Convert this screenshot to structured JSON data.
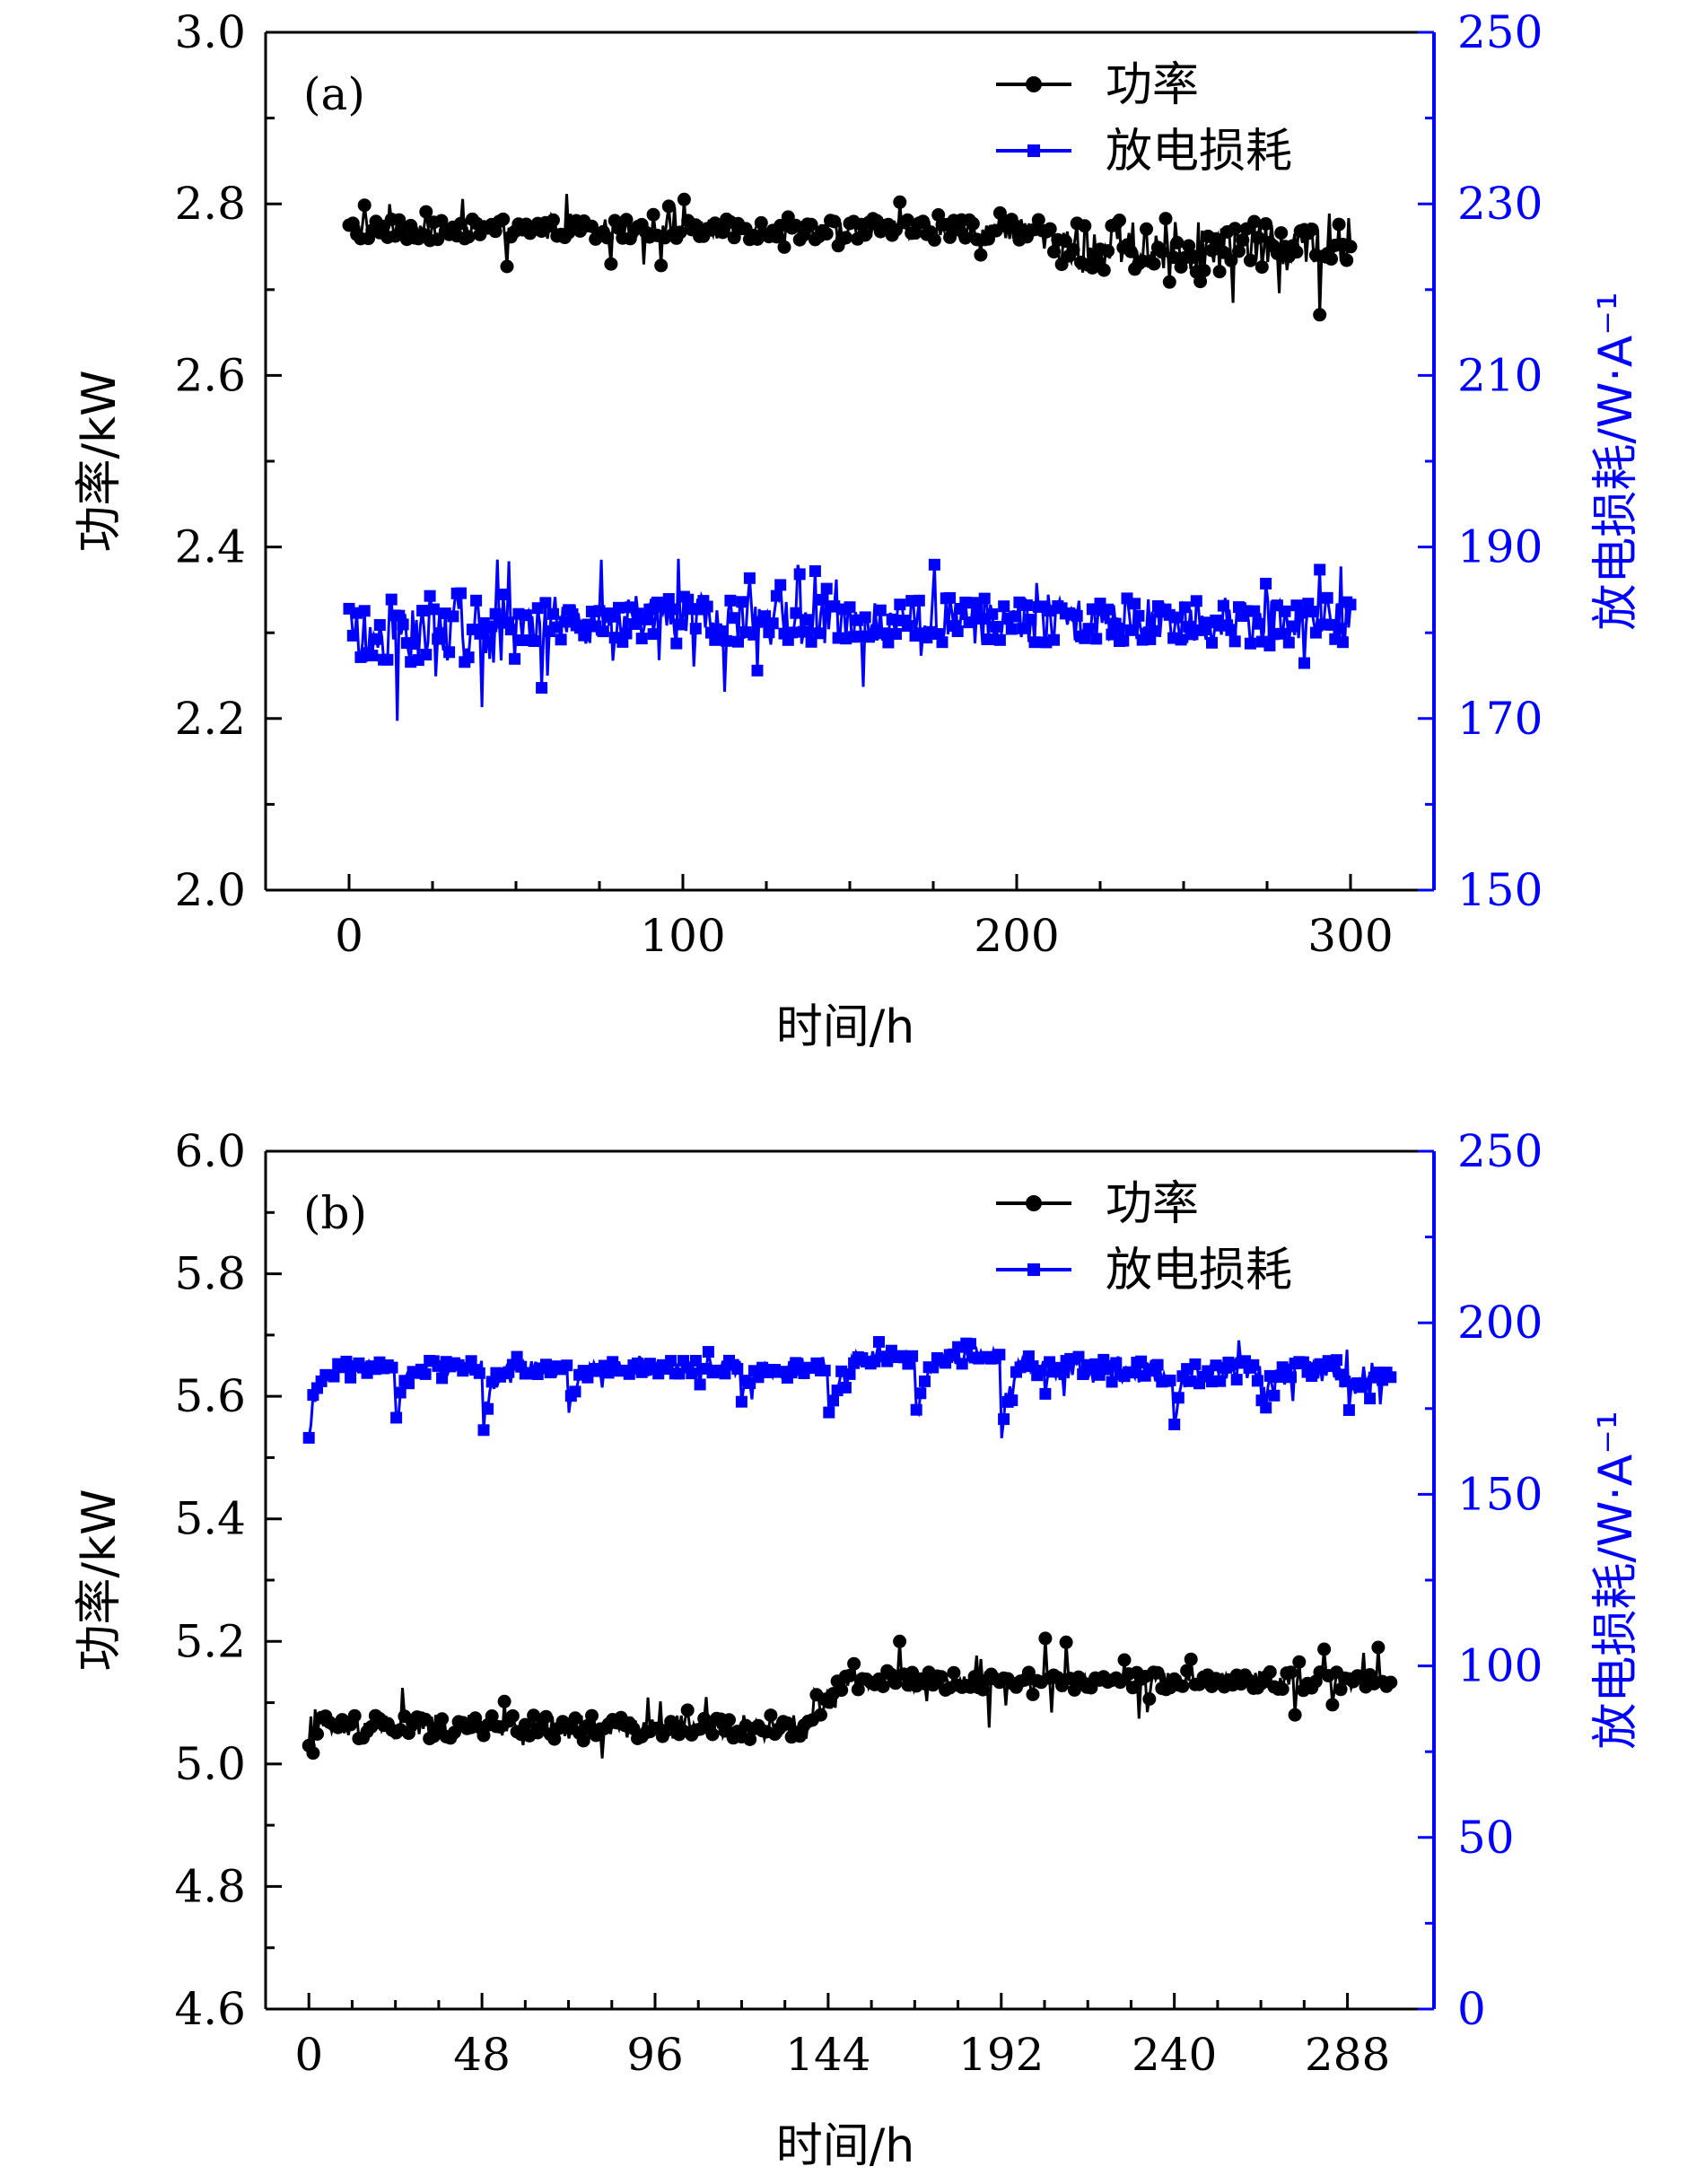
{
  "colors": {
    "power": "#000000",
    "loss": "#0000ff",
    "axis": "#000000",
    "right_axis": "#0000ff"
  },
  "chart_data": [
    {
      "type": "scatter",
      "panel_label": "(a)",
      "xlabel": "时间/h",
      "ylabel_left": "功率/kW",
      "ylabel_right": "放电损耗/W·A⁻¹",
      "xlim": [
        -25,
        325
      ],
      "xticks": [
        0,
        100,
        200,
        300
      ],
      "ylim_left": [
        2.0,
        3.0
      ],
      "yticks_left": [
        "2.0",
        "2.2",
        "2.4",
        "2.6",
        "2.8",
        "3.0"
      ],
      "ylim_right": [
        150,
        250
      ],
      "yticks_right": [
        "150",
        "170",
        "190",
        "210",
        "230",
        "250"
      ],
      "legend": {
        "position": "top-right",
        "entries": [
          "功率",
          "放电损耗"
        ]
      },
      "series": [
        {
          "name": "功率",
          "axis": "left",
          "marker": "circle",
          "color": "#000000",
          "x_range": [
            0,
            300
          ],
          "segments": [
            {
              "x": [
                0,
                210
              ],
              "base": 2.77,
              "noise": 0.012,
              "spikes": 0.035
            },
            {
              "x": [
                210,
                300
              ],
              "base": 2.75,
              "noise": 0.03,
              "spikes": 0.06
            }
          ]
        },
        {
          "name": "放电损耗",
          "axis": "right",
          "marker": "square",
          "color": "#0000ff",
          "x_range": [
            0,
            300
          ],
          "segments": [
            {
              "x": [
                0,
                50
              ],
              "base": 181,
              "noise": 4.5,
              "spikes": 10
            },
            {
              "x": [
                50,
                300
              ],
              "base": 181.5,
              "noise": 2.8,
              "spikes": 7
            }
          ]
        }
      ]
    },
    {
      "type": "scatter",
      "panel_label": "(b)",
      "xlabel": "时间/h",
      "ylabel_left": "功率/kW",
      "ylabel_right": "放电损耗/W·A⁻¹",
      "xlim": [
        -12,
        312
      ],
      "xticks": [
        0,
        48,
        96,
        144,
        192,
        240,
        288
      ],
      "ylim_left": [
        4.6,
        6.0
      ],
      "yticks_left": [
        "4.6",
        "4.8",
        "5.0",
        "5.2",
        "5.4",
        "5.6",
        "5.8",
        "6.0"
      ],
      "ylim_right": [
        0,
        250
      ],
      "yticks_right": [
        "0",
        "50",
        "100",
        "150",
        "200",
        "250"
      ],
      "legend": {
        "position": "top-right",
        "entries": [
          "功率",
          "放电损耗"
        ]
      },
      "series": [
        {
          "name": "功率",
          "axis": "left",
          "marker": "circle",
          "color": "#000000",
          "x_range": [
            0,
            300
          ],
          "segments": [
            {
              "x": [
                0,
                140
              ],
              "base": 5.06,
              "noise": 0.02,
              "spikes": 0.06
            },
            {
              "x": [
                140,
                146
              ],
              "base": 5.1,
              "noise": 0.02,
              "spikes": 0.05
            },
            {
              "x": [
                146,
                300
              ],
              "base": 5.135,
              "noise": 0.015,
              "spikes": 0.07
            }
          ]
        },
        {
          "name": "放电损耗",
          "axis": "right",
          "marker": "square",
          "color": "#0000ff",
          "x_range": [
            0,
            300
          ],
          "segments": [
            {
              "x": [
                0,
                150
              ],
              "base": 187,
              "noise": 2,
              "spikes": 5
            },
            {
              "x": [
                150,
                200
              ],
              "base": 190,
              "noise": 2,
              "spikes": 5
            },
            {
              "x": [
                200,
                300
              ],
              "base": 186,
              "noise": 3.5,
              "spikes": 8
            }
          ],
          "dips": [
            {
              "x": 0,
              "min": 165
            },
            {
              "x": 24,
              "min": 167
            },
            {
              "x": 48,
              "min": 165
            },
            {
              "x": 72,
              "min": 172
            },
            {
              "x": 120,
              "min": 175
            },
            {
              "x": 144,
              "min": 167
            },
            {
              "x": 168,
              "min": 163
            },
            {
              "x": 192,
              "min": 160
            },
            {
              "x": 240,
              "min": 169
            },
            {
              "x": 264,
              "min": 172
            },
            {
              "x": 288,
              "min": 168
            }
          ]
        }
      ]
    }
  ]
}
